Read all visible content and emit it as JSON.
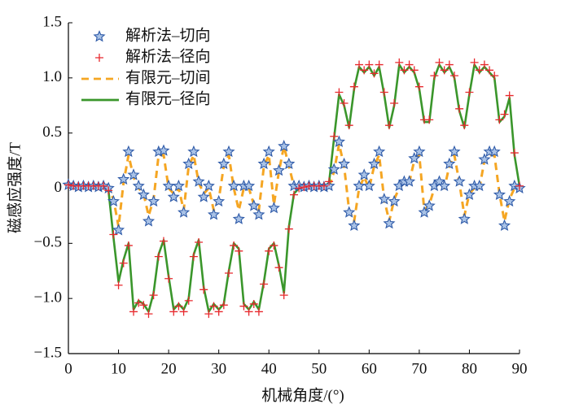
{
  "chart_data": {
    "type": "line",
    "xlabel": "机械角度/(°)",
    "ylabel": "磁感应强度/T",
    "x": [
      0,
      1,
      2,
      3,
      4,
      5,
      6,
      7,
      8,
      9,
      10,
      11,
      12,
      13,
      14,
      15,
      16,
      17,
      18,
      19,
      20,
      21,
      22,
      23,
      24,
      25,
      26,
      27,
      28,
      29,
      30,
      31,
      32,
      33,
      34,
      35,
      36,
      37,
      38,
      39,
      40,
      41,
      42,
      43,
      44,
      45,
      46,
      47,
      48,
      49,
      50,
      51,
      52,
      53,
      54,
      55,
      56,
      57,
      58,
      59,
      60,
      61,
      62,
      63,
      64,
      65,
      66,
      67,
      68,
      69,
      70,
      71,
      72,
      73,
      74,
      75,
      76,
      77,
      78,
      79,
      80,
      81,
      82,
      83,
      84,
      85,
      86,
      87,
      88,
      89,
      90
    ],
    "series": [
      {
        "name": "解析法–切向",
        "color": "#2e5aa8",
        "marker": "star",
        "values": [
          0.03,
          0.02,
          0.01,
          0.02,
          0.01,
          0.02,
          0.01,
          0.02,
          0.0,
          -0.12,
          -0.38,
          0.08,
          0.33,
          0.12,
          0.02,
          -0.06,
          -0.3,
          -0.12,
          0.33,
          0.34,
          0.02,
          -0.08,
          0.02,
          -0.22,
          0.22,
          0.33,
          0.06,
          -0.08,
          0.02,
          -0.24,
          -0.12,
          0.22,
          0.33,
          0.02,
          -0.28,
          0.02,
          0.02,
          -0.16,
          -0.24,
          0.22,
          0.33,
          -0.18,
          0.16,
          0.38,
          0.22,
          0.02,
          0.02,
          0.01,
          0.02,
          0.01,
          0.02,
          0.01,
          0.02,
          0.17,
          0.42,
          0.22,
          -0.22,
          -0.34,
          0.02,
          0.12,
          0.02,
          0.22,
          0.33,
          -0.1,
          -0.32,
          -0.12,
          0.02,
          0.06,
          0.06,
          0.27,
          0.33,
          -0.22,
          -0.16,
          0.02,
          0.06,
          0.02,
          0.22,
          0.33,
          0.06,
          -0.28,
          -0.06,
          0.02,
          0.02,
          0.26,
          0.33,
          0.33,
          -0.06,
          -0.34,
          -0.12,
          0.02,
          0.0
        ]
      },
      {
        "name": "解析法–径向",
        "color": "#e8282d",
        "marker": "plus",
        "values": [
          0.03,
          0.02,
          0.02,
          0.02,
          0.02,
          0.02,
          0.02,
          0.02,
          -0.02,
          -0.42,
          -0.88,
          -0.68,
          -0.52,
          -1.12,
          -1.04,
          -1.06,
          -1.14,
          -0.97,
          -0.62,
          -0.48,
          -0.82,
          -1.12,
          -1.07,
          -1.12,
          -1.02,
          -0.62,
          -0.49,
          -0.92,
          -1.14,
          -1.07,
          -1.12,
          -1.06,
          -0.77,
          -0.52,
          -0.57,
          -1.07,
          -1.12,
          -1.05,
          -1.12,
          -0.87,
          -0.57,
          -0.52,
          -0.72,
          -0.97,
          -0.37,
          -0.06,
          0.0,
          0.01,
          0.02,
          0.02,
          0.02,
          0.02,
          0.06,
          0.47,
          0.87,
          0.77,
          0.57,
          0.92,
          1.12,
          1.07,
          1.12,
          1.04,
          1.12,
          0.87,
          0.57,
          0.77,
          1.14,
          1.07,
          1.12,
          1.07,
          0.92,
          0.62,
          0.62,
          1.02,
          1.14,
          1.07,
          1.12,
          1.02,
          0.72,
          0.57,
          0.87,
          1.14,
          1.07,
          1.12,
          1.07,
          1.02,
          0.62,
          0.67,
          0.84,
          0.32,
          0.02
        ]
      },
      {
        "name": "有限元–切间",
        "color": "#f5a623",
        "line_style": "dashed",
        "values": [
          0.01,
          0.01,
          0.01,
          0.01,
          0.01,
          0.01,
          0.01,
          0.01,
          0.0,
          -0.1,
          -0.35,
          0.05,
          0.3,
          0.1,
          0.0,
          -0.05,
          -0.25,
          -0.1,
          0.3,
          0.3,
          0.0,
          -0.05,
          0.0,
          -0.2,
          0.2,
          0.3,
          0.05,
          -0.05,
          0.0,
          -0.2,
          -0.1,
          0.2,
          0.3,
          0.0,
          -0.2,
          0.0,
          0.0,
          -0.15,
          -0.2,
          0.2,
          0.3,
          -0.15,
          0.15,
          0.38,
          0.2,
          0.02,
          0.01,
          0.01,
          0.01,
          0.01,
          0.01,
          0.01,
          0.01,
          0.15,
          0.4,
          0.2,
          -0.2,
          -0.3,
          0.0,
          0.1,
          0.0,
          0.2,
          0.3,
          -0.1,
          -0.3,
          -0.1,
          0.0,
          0.05,
          0.05,
          0.25,
          0.3,
          -0.2,
          -0.15,
          0.0,
          0.05,
          0.0,
          0.2,
          0.3,
          0.05,
          -0.25,
          -0.05,
          0.0,
          0.0,
          0.25,
          0.3,
          0.3,
          -0.05,
          -0.3,
          -0.1,
          0.0,
          0.0
        ]
      },
      {
        "name": "有限元–径向",
        "color": "#3a962b",
        "line_style": "solid",
        "values": [
          0.02,
          0.01,
          0.01,
          0.01,
          0.01,
          0.01,
          0.01,
          0.01,
          -0.02,
          -0.45,
          -0.85,
          -0.65,
          -0.5,
          -1.1,
          -1.02,
          -1.05,
          -1.12,
          -0.95,
          -0.6,
          -0.47,
          -0.8,
          -1.1,
          -1.05,
          -1.1,
          -1.0,
          -0.6,
          -0.47,
          -0.9,
          -1.12,
          -1.05,
          -1.1,
          -1.05,
          -0.75,
          -0.5,
          -0.55,
          -1.05,
          -1.1,
          -1.03,
          -1.1,
          -0.85,
          -0.55,
          -0.5,
          -0.7,
          -0.95,
          -0.35,
          -0.05,
          0.0,
          0.01,
          0.01,
          0.01,
          0.01,
          0.01,
          0.05,
          0.45,
          0.85,
          0.75,
          0.55,
          0.9,
          1.1,
          1.05,
          1.1,
          1.02,
          1.1,
          0.85,
          0.55,
          0.75,
          1.12,
          1.05,
          1.1,
          1.05,
          0.9,
          0.6,
          0.6,
          1.0,
          1.12,
          1.05,
          1.1,
          1.0,
          0.7,
          0.55,
          0.85,
          1.12,
          1.05,
          1.1,
          1.05,
          1.0,
          0.6,
          0.65,
          0.82,
          0.3,
          0.02
        ]
      }
    ],
    "xlim": [
      0,
      90
    ],
    "xticks": [
      0,
      10,
      20,
      30,
      40,
      50,
      60,
      70,
      80,
      90
    ],
    "ylim": [
      -1.5,
      1.5
    ],
    "yticks": [
      {
        "value": -1.5,
        "label": "−1.5"
      },
      {
        "value": -1.0,
        "label": "−1.0"
      },
      {
        "value": -0.5,
        "label": "−0.5"
      },
      0,
      0.5,
      {
        "value": 1.0,
        "label": "1.0"
      },
      1.5
    ],
    "legend": "upper left",
    "grid": false
  }
}
